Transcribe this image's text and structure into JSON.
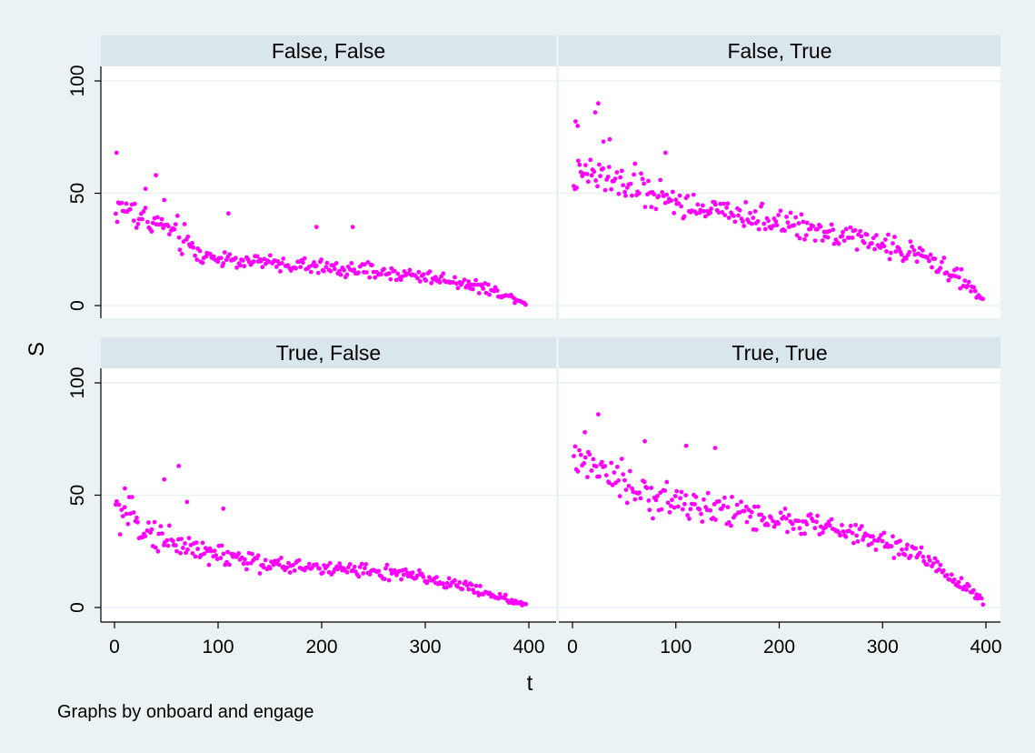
{
  "figure": {
    "ylabel": "S",
    "xlabel": "t",
    "note": "Graphs by onboard and engage",
    "marker_color": "#ff00ff",
    "panel_header_color": "#d9e6eb",
    "background_color": "#eaf2f3",
    "plot_background": "#ffffff",
    "gridline_color": "#eaf2f3"
  },
  "chart_data": [
    {
      "type": "scatter",
      "title": "False, False",
      "xlim": [
        0,
        400
      ],
      "ylim": [
        0,
        100
      ],
      "xticks": [
        0,
        100,
        200,
        300,
        400
      ],
      "yticks": [
        0,
        50,
        100
      ],
      "grid": true,
      "anchors": [
        [
          0,
          42
        ],
        [
          10,
          44
        ],
        [
          20,
          40
        ],
        [
          40,
          37
        ],
        [
          60,
          32
        ],
        [
          80,
          23
        ],
        [
          100,
          21
        ],
        [
          150,
          19
        ],
        [
          200,
          17
        ],
        [
          250,
          15
        ],
        [
          300,
          13
        ],
        [
          340,
          10
        ],
        [
          370,
          6
        ],
        [
          398,
          1
        ]
      ],
      "spread": [
        [
          0,
          8
        ],
        [
          70,
          9
        ],
        [
          90,
          4
        ],
        [
          300,
          4
        ],
        [
          360,
          3
        ],
        [
          400,
          1
        ]
      ],
      "outliers": [
        [
          2,
          68
        ],
        [
          40,
          58
        ],
        [
          30,
          52
        ],
        [
          195,
          35
        ],
        [
          230,
          35
        ],
        [
          110,
          41
        ],
        [
          48,
          47
        ]
      ]
    },
    {
      "type": "scatter",
      "title": "False, True",
      "xlim": [
        0,
        400
      ],
      "ylim": [
        0,
        100
      ],
      "xticks": [
        0,
        100,
        200,
        300,
        400
      ],
      "yticks": [
        0,
        50,
        100
      ],
      "grid": true,
      "anchors": [
        [
          0,
          56
        ],
        [
          20,
          58
        ],
        [
          40,
          55
        ],
        [
          60,
          53
        ],
        [
          100,
          46
        ],
        [
          150,
          41
        ],
        [
          200,
          37
        ],
        [
          250,
          33
        ],
        [
          300,
          27
        ],
        [
          340,
          22
        ],
        [
          370,
          14
        ],
        [
          398,
          2
        ]
      ],
      "spread": [
        [
          0,
          9
        ],
        [
          80,
          10
        ],
        [
          150,
          7
        ],
        [
          300,
          6
        ],
        [
          380,
          4
        ],
        [
          400,
          2
        ]
      ],
      "outliers": [
        [
          3,
          82
        ],
        [
          5,
          80
        ],
        [
          22,
          86
        ],
        [
          25,
          90
        ],
        [
          30,
          73
        ],
        [
          36,
          74
        ],
        [
          90,
          68
        ]
      ]
    },
    {
      "type": "scatter",
      "title": "True, False",
      "xlim": [
        0,
        400
      ],
      "ylim": [
        0,
        100
      ],
      "xticks": [
        0,
        100,
        200,
        300,
        400
      ],
      "yticks": [
        0,
        50,
        100
      ],
      "grid": true,
      "anchors": [
        [
          0,
          43
        ],
        [
          20,
          39
        ],
        [
          40,
          32
        ],
        [
          60,
          29
        ],
        [
          80,
          26
        ],
        [
          100,
          23
        ],
        [
          150,
          19
        ],
        [
          200,
          18
        ],
        [
          250,
          16
        ],
        [
          300,
          13
        ],
        [
          340,
          9
        ],
        [
          370,
          5
        ],
        [
          398,
          1
        ]
      ],
      "spread": [
        [
          0,
          9
        ],
        [
          100,
          7
        ],
        [
          150,
          4
        ],
        [
          300,
          4
        ],
        [
          360,
          3
        ],
        [
          400,
          1
        ]
      ],
      "outliers": [
        [
          10,
          53
        ],
        [
          48,
          57
        ],
        [
          62,
          63
        ],
        [
          70,
          47
        ],
        [
          105,
          44
        ]
      ]
    },
    {
      "type": "scatter",
      "title": "True, True",
      "xlim": [
        0,
        400
      ],
      "ylim": [
        0,
        100
      ],
      "xticks": [
        0,
        100,
        200,
        300,
        400
      ],
      "yticks": [
        0,
        50,
        100
      ],
      "grid": true,
      "anchors": [
        [
          0,
          66
        ],
        [
          30,
          60
        ],
        [
          60,
          52
        ],
        [
          100,
          47
        ],
        [
          150,
          43
        ],
        [
          200,
          39
        ],
        [
          250,
          35
        ],
        [
          300,
          29
        ],
        [
          340,
          22
        ],
        [
          370,
          13
        ],
        [
          398,
          2
        ]
      ],
      "spread": [
        [
          0,
          9
        ],
        [
          80,
          10
        ],
        [
          150,
          7
        ],
        [
          300,
          6
        ],
        [
          380,
          4
        ],
        [
          400,
          2
        ]
      ],
      "outliers": [
        [
          25,
          86
        ],
        [
          12,
          78
        ],
        [
          70,
          74
        ],
        [
          110,
          72
        ],
        [
          138,
          71
        ]
      ]
    }
  ]
}
